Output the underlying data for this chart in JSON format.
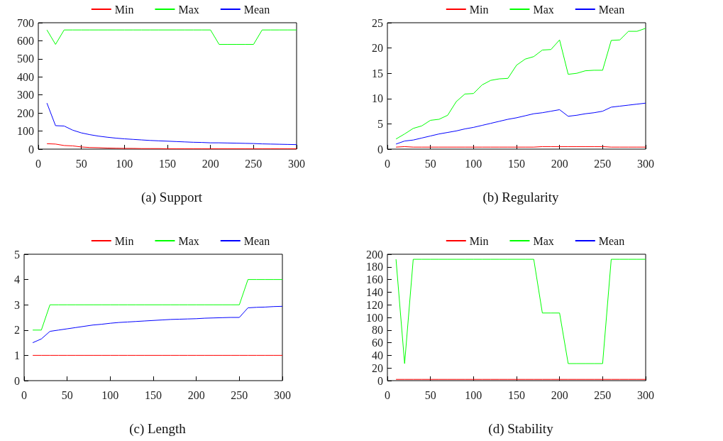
{
  "chart_data": [
    {
      "type": "line",
      "title": "(a) Support",
      "x": [
        10,
        20,
        30,
        40,
        50,
        60,
        70,
        80,
        90,
        100,
        110,
        120,
        130,
        140,
        150,
        160,
        170,
        180,
        190,
        200,
        210,
        220,
        230,
        240,
        250,
        260,
        270,
        280,
        290,
        300
      ],
      "xlim": [
        0,
        300
      ],
      "xticks": [
        0,
        50,
        100,
        150,
        200,
        250,
        300
      ],
      "ylim": [
        0,
        700
      ],
      "yticks": [
        0,
        100,
        200,
        300,
        400,
        500,
        600,
        700
      ],
      "grid": false,
      "legend": "top",
      "marker": "none",
      "line_style": "solid",
      "series": [
        {
          "name": "Min",
          "color": "#ff0000",
          "values": [
            30,
            28,
            20,
            18,
            12,
            9,
            8,
            6,
            5,
            4,
            4,
            3,
            3,
            3,
            2,
            2,
            2,
            2,
            2,
            2,
            2,
            2,
            2,
            2,
            2,
            2,
            2,
            2,
            2,
            2
          ]
        },
        {
          "name": "Max",
          "color": "#00ff00",
          "values": [
            660,
            580,
            660,
            660,
            660,
            660,
            660,
            660,
            660,
            660,
            660,
            660,
            660,
            660,
            660,
            660,
            660,
            660,
            660,
            660,
            580,
            580,
            580,
            580,
            580,
            660,
            660,
            660,
            660,
            660
          ]
        },
        {
          "name": "Mean",
          "color": "#0000ff",
          "values": [
            255,
            130,
            128,
            105,
            90,
            80,
            72,
            66,
            61,
            57,
            54,
            51,
            48,
            46,
            44,
            42,
            40,
            38,
            37,
            35,
            35,
            34,
            33,
            32,
            31,
            29,
            28,
            27,
            26,
            25
          ]
        }
      ]
    },
    {
      "type": "line",
      "title": "(b) Regularity",
      "x": [
        10,
        20,
        30,
        40,
        50,
        60,
        70,
        80,
        90,
        100,
        110,
        120,
        130,
        140,
        150,
        160,
        170,
        180,
        190,
        200,
        210,
        220,
        230,
        240,
        250,
        260,
        270,
        280,
        290,
        300
      ],
      "xlim": [
        0,
        300
      ],
      "xticks": [
        0,
        50,
        100,
        150,
        200,
        250,
        300
      ],
      "ylim": [
        0,
        25
      ],
      "yticks": [
        0,
        5,
        10,
        15,
        20,
        25
      ],
      "grid": false,
      "legend": "top",
      "marker": "none",
      "line_style": "solid",
      "series": [
        {
          "name": "Min",
          "color": "#ff0000",
          "values": [
            0.4,
            0.5,
            0.4,
            0.4,
            0.4,
            0.4,
            0.4,
            0.4,
            0.4,
            0.4,
            0.4,
            0.4,
            0.4,
            0.4,
            0.4,
            0.4,
            0.4,
            0.5,
            0.5,
            0.5,
            0.5,
            0.5,
            0.5,
            0.5,
            0.5,
            0.4,
            0.4,
            0.4,
            0.4,
            0.4
          ]
        },
        {
          "name": "Max",
          "color": "#00ff00",
          "values": [
            2.0,
            3.0,
            4.1,
            4.6,
            5.7,
            5.9,
            6.7,
            9.4,
            10.9,
            11.0,
            12.7,
            13.6,
            13.9,
            14.0,
            16.6,
            17.8,
            18.3,
            19.6,
            19.7,
            21.6,
            14.8,
            15.0,
            15.5,
            15.6,
            15.6,
            21.5,
            21.6,
            23.3,
            23.3,
            23.9
          ]
        },
        {
          "name": "Mean",
          "color": "#0000ff",
          "values": [
            1.0,
            1.6,
            1.8,
            2.2,
            2.6,
            3.0,
            3.3,
            3.6,
            4.0,
            4.3,
            4.7,
            5.1,
            5.5,
            5.9,
            6.2,
            6.6,
            7.0,
            7.2,
            7.5,
            7.8,
            6.5,
            6.7,
            7.0,
            7.2,
            7.5,
            8.3,
            8.5,
            8.7,
            8.9,
            9.1
          ]
        }
      ]
    },
    {
      "type": "line",
      "title": "(c) Length",
      "x": [
        10,
        20,
        30,
        40,
        50,
        60,
        70,
        80,
        90,
        100,
        110,
        120,
        130,
        140,
        150,
        160,
        170,
        180,
        190,
        200,
        210,
        220,
        230,
        240,
        250,
        260,
        270,
        280,
        290,
        300
      ],
      "xlim": [
        0,
        300
      ],
      "xticks": [
        0,
        50,
        100,
        150,
        200,
        250,
        300
      ],
      "ylim": [
        0,
        5
      ],
      "yticks": [
        0,
        1,
        2,
        3,
        4,
        5
      ],
      "grid": false,
      "legend": "top",
      "marker": "none",
      "line_style": "solid",
      "series": [
        {
          "name": "Min",
          "color": "#ff0000",
          "values": [
            1,
            1,
            1,
            1,
            1,
            1,
            1,
            1,
            1,
            1,
            1,
            1,
            1,
            1,
            1,
            1,
            1,
            1,
            1,
            1,
            1,
            1,
            1,
            1,
            1,
            1,
            1,
            1,
            1,
            1
          ]
        },
        {
          "name": "Max",
          "color": "#00ff00",
          "values": [
            2,
            2,
            3,
            3,
            3,
            3,
            3,
            3,
            3,
            3,
            3,
            3,
            3,
            3,
            3,
            3,
            3,
            3,
            3,
            3,
            3,
            3,
            3,
            3,
            3,
            4,
            4,
            4,
            4,
            4
          ]
        },
        {
          "name": "Mean",
          "color": "#0000ff",
          "values": [
            1.5,
            1.65,
            1.95,
            2.0,
            2.05,
            2.1,
            2.15,
            2.2,
            2.23,
            2.27,
            2.3,
            2.32,
            2.34,
            2.36,
            2.38,
            2.4,
            2.42,
            2.43,
            2.44,
            2.45,
            2.47,
            2.48,
            2.49,
            2.5,
            2.5,
            2.88,
            2.9,
            2.91,
            2.93,
            2.94
          ]
        }
      ]
    },
    {
      "type": "line",
      "title": "(d) Stability",
      "x": [
        10,
        20,
        30,
        40,
        50,
        60,
        70,
        80,
        90,
        100,
        110,
        120,
        130,
        140,
        150,
        160,
        170,
        180,
        190,
        200,
        210,
        220,
        230,
        240,
        250,
        260,
        270,
        280,
        290,
        300
      ],
      "xlim": [
        0,
        300
      ],
      "xticks": [
        0,
        50,
        100,
        150,
        200,
        250,
        300
      ],
      "ylim": [
        0,
        200
      ],
      "yticks": [
        0,
        20,
        40,
        60,
        80,
        100,
        120,
        140,
        160,
        180,
        200
      ],
      "grid": false,
      "legend": "top",
      "marker": "none",
      "line_style": "solid",
      "series": [
        {
          "name": "Min",
          "color": "#ff0000",
          "values": [
            2,
            2,
            2,
            2,
            2,
            2,
            2,
            2,
            2,
            2,
            2,
            2,
            2,
            2,
            2,
            2,
            2,
            2,
            2,
            2,
            2,
            2,
            2,
            2,
            2,
            2,
            2,
            2,
            2,
            2
          ]
        },
        {
          "name": "Max",
          "color": "#00ff00",
          "values": [
            192,
            27,
            192,
            192,
            192,
            192,
            192,
            192,
            192,
            192,
            192,
            192,
            192,
            192,
            192,
            192,
            192,
            107,
            107,
            107,
            27,
            27,
            27,
            27,
            27,
            192,
            192,
            192,
            192,
            192
          ]
        },
        {
          "name": "Mean",
          "color": "#0000ff",
          "values": [
            null,
            null,
            null,
            null,
            null,
            null,
            null,
            null,
            null,
            null,
            null,
            null,
            null,
            null,
            null,
            null,
            null,
            null,
            null,
            null,
            null,
            null,
            null,
            null,
            null,
            null,
            null,
            null,
            null,
            null
          ]
        }
      ]
    }
  ]
}
